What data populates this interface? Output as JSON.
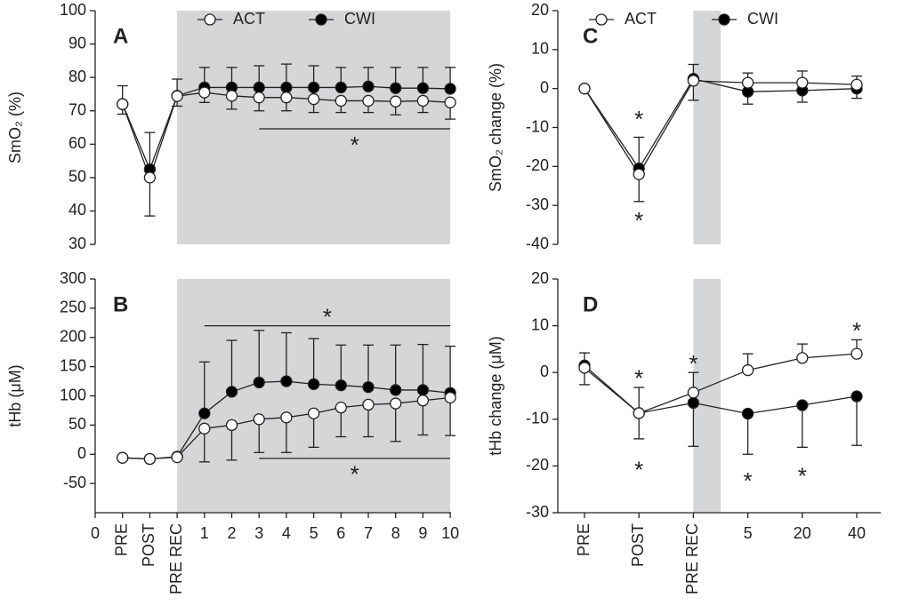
{
  "chart_data": [
    {
      "type": "line",
      "panel_label": "A",
      "ylabel": "SmO₂ (%)",
      "ylim": [
        30,
        100
      ],
      "yticks": [
        30,
        40,
        50,
        60,
        70,
        80,
        90,
        100
      ],
      "x_axis": false,
      "shade": [
        3,
        13
      ],
      "legend": "top",
      "series": [
        {
          "name": "ACT",
          "color": "#ffffff",
          "values": [
            null,
            72,
            50,
            74.4,
            75.5,
            74.5,
            74,
            74,
            73.5,
            73,
            73,
            72.8,
            73,
            72.5
          ],
          "errors": [
            null,
            3,
            11.5,
            3,
            3,
            4,
            4,
            4,
            4,
            3.5,
            3.5,
            4,
            3.5,
            5
          ],
          "error_side": [
            null,
            "down",
            "down",
            "down",
            "down",
            "down",
            "down",
            "down",
            "down",
            "down",
            "down",
            "down",
            "down",
            "down"
          ]
        },
        {
          "name": "CWI",
          "color": "#000000",
          "values": [
            null,
            72,
            52.5,
            74.5,
            77,
            77,
            77,
            77,
            77,
            77,
            77.3,
            76.8,
            76.8,
            76.6
          ],
          "errors": [
            null,
            5.5,
            11,
            5,
            6,
            6,
            6.5,
            7,
            6.5,
            6,
            5.7,
            6.2,
            6.2,
            6.4
          ],
          "error_side": [
            null,
            "up",
            "up",
            "up",
            "up",
            "up",
            "up",
            "up",
            "up",
            "up",
            "up",
            "up",
            "up",
            "up"
          ]
        }
      ],
      "brackets": [
        {
          "from": 6,
          "to": 13,
          "y": 64.6,
          "label": "*",
          "label_side": "below"
        }
      ]
    },
    {
      "type": "line",
      "panel_label": "B",
      "ylabel": "tHb (μM)",
      "ylim": [
        -100,
        300
      ],
      "yticks": [
        -50,
        0,
        50,
        100,
        150,
        200,
        250,
        300
      ],
      "x_axis": true,
      "shade": [
        3,
        13
      ],
      "categories": [
        "0",
        "PRE",
        "POST",
        "PRE REC",
        "1",
        "2",
        "3",
        "4",
        "5",
        "6",
        "7",
        "8",
        "9",
        "10"
      ],
      "series": [
        {
          "name": "ACT",
          "color": "#ffffff",
          "values": [
            null,
            -6,
            -8,
            -5,
            44,
            50,
            60,
            63,
            70,
            80,
            85,
            87,
            92,
            97
          ],
          "errors": [
            null,
            null,
            null,
            null,
            57,
            60,
            57,
            60,
            58,
            50,
            55,
            65,
            59,
            65
          ],
          "error_side": [
            null,
            null,
            null,
            null,
            "down",
            "down",
            "down",
            "down",
            "down",
            "down",
            "down",
            "down",
            "down",
            "down"
          ]
        },
        {
          "name": "CWI",
          "color": "#000000",
          "values": [
            null,
            -6,
            -8,
            -4,
            70,
            107,
            123,
            125,
            120,
            118,
            115,
            110,
            110,
            105
          ],
          "errors": [
            null,
            null,
            null,
            null,
            88,
            88,
            89,
            83,
            78,
            69,
            72,
            77,
            78,
            80
          ],
          "error_side": [
            null,
            null,
            null,
            null,
            "up",
            "up",
            "up",
            "up",
            "up",
            "up",
            "up",
            "up",
            "up",
            "up"
          ]
        }
      ],
      "brackets": [
        {
          "from": 4,
          "to": 13,
          "y": 220,
          "label": "*",
          "label_side": "above"
        },
        {
          "from": 6,
          "to": 13,
          "y": -7,
          "label": "*",
          "label_side": "below"
        }
      ]
    },
    {
      "type": "line",
      "panel_label": "C",
      "ylabel": "SmO₂ change (%)",
      "ylim": [
        -40,
        20
      ],
      "yticks": [
        -40,
        -30,
        -20,
        -10,
        0,
        10,
        20
      ],
      "x_axis": false,
      "shade": [
        2,
        2.5
      ],
      "legend": "top",
      "series": [
        {
          "name": "ACT",
          "color": "#ffffff",
          "values": [
            0,
            -22,
            2,
            1.5,
            1.5,
            1
          ],
          "errors": [
            null,
            7,
            5,
            2.5,
            3,
            2.2
          ],
          "error_side": [
            null,
            "down",
            "down",
            "up",
            "up",
            "up"
          ]
        },
        {
          "name": "CWI",
          "color": "#000000",
          "values": [
            0,
            -20.5,
            2.5,
            -0.8,
            -0.5,
            0
          ],
          "errors": [
            null,
            8,
            3.7,
            3.2,
            3,
            2.5
          ],
          "error_side": [
            null,
            "up",
            "up",
            "down",
            "down",
            "down"
          ]
        }
      ],
      "annotations": [
        {
          "text": "*",
          "x": 1,
          "y": -7
        },
        {
          "text": "*",
          "x": 1,
          "y": -33
        }
      ]
    },
    {
      "type": "line",
      "panel_label": "D",
      "ylabel": "tHb change (μM)",
      "ylim": [
        -30,
        20
      ],
      "yticks": [
        -30,
        -20,
        -10,
        0,
        10,
        20
      ],
      "x_axis": true,
      "shade": [
        2,
        2.5
      ],
      "categories": [
        "PRE",
        "POST",
        "PRE REC",
        "5",
        "20",
        "40"
      ],
      "series": [
        {
          "name": "ACT",
          "color": "#ffffff",
          "values": [
            1,
            -8.7,
            -4.3,
            0.5,
            3.1,
            4
          ],
          "errors": [
            3.6,
            5.5,
            4.3,
            3.5,
            3,
            3
          ],
          "error_side": [
            "down",
            "up",
            "up",
            "up",
            "up",
            "up"
          ]
        },
        {
          "name": "CWI",
          "color": "#000000",
          "values": [
            1.5,
            -8.7,
            -6.5,
            -8.8,
            -7,
            -5.1
          ],
          "errors": [
            2.7,
            5.5,
            9.3,
            8.7,
            9,
            10.5
          ],
          "error_side": [
            "up",
            "down",
            "down",
            "down",
            "down",
            "down"
          ]
        }
      ],
      "annotations": [
        {
          "text": "*",
          "x": 1,
          "y": -0.5
        },
        {
          "text": "*",
          "x": 1,
          "y": -20
        },
        {
          "text": "*",
          "x": 2,
          "y": 2.7
        },
        {
          "text": "*",
          "x": 3,
          "y": -22.4
        },
        {
          "text": "*",
          "x": 4,
          "y": -21.4
        },
        {
          "text": "*",
          "x": 5,
          "y": 9.7
        }
      ]
    }
  ]
}
